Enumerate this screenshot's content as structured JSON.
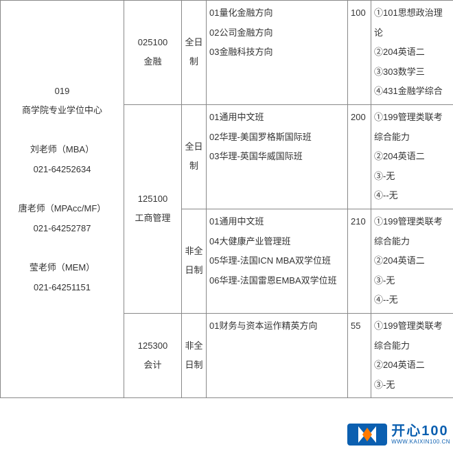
{
  "col_widths": [
    "180px",
    "84px",
    "36px",
    "206px",
    "34px",
    "120px"
  ],
  "dept": {
    "code": "019",
    "name": "商学院专业学位中心",
    "contacts": [
      {
        "name": "刘老师（MBA）",
        "phone": "021-64252634"
      },
      {
        "name": "唐老师（MPAcc/MF）",
        "phone": "021-64252787"
      },
      {
        "name": "莹老师（MEM）",
        "phone": "021-64251151"
      }
    ]
  },
  "rows": [
    {
      "major_code": "025100",
      "major_name": "金融",
      "mode": "全日制",
      "directions": [
        "01量化金融方向",
        "02公司金融方向",
        "03金融科技方向"
      ],
      "quota": "100",
      "exams": [
        "①101思想政治理论",
        "②204英语二",
        "③303数学三",
        "④431金融学综合"
      ],
      "major_rowspan": 1
    },
    {
      "major_code": "125100",
      "major_name": "工商管理",
      "mode": "全日制",
      "directions": [
        "01通用中文班",
        "02华理-美国罗格斯国际班",
        "03华理-英国华威国际班"
      ],
      "quota": "200",
      "exams": [
        "①199管理类联考综合能力",
        "②204英语二",
        "③-无",
        "④--无"
      ],
      "major_rowspan": 2
    },
    {
      "mode": "非全日制",
      "directions": [
        "01通用中文班",
        "04大健康产业管理班",
        "05华理-法国ICN MBA双学位班",
        "06华理-法国雷恩EMBA双学位班"
      ],
      "quota": "210",
      "exams": [
        "①199管理类联考综合能力",
        "②204英语二",
        "③-无",
        "④--无"
      ]
    },
    {
      "major_code": "125300",
      "major_name": "会计",
      "mode": "非全日制",
      "directions": [
        "01财务与资本运作精英方向"
      ],
      "quota": "55",
      "exams": [
        "①199管理类联考综合能力",
        "②204英语二",
        "③-无"
      ],
      "major_rowspan": 1
    }
  ],
  "watermark": {
    "brand": "开心100",
    "url": "WWW.KAIXIN100.CN"
  }
}
